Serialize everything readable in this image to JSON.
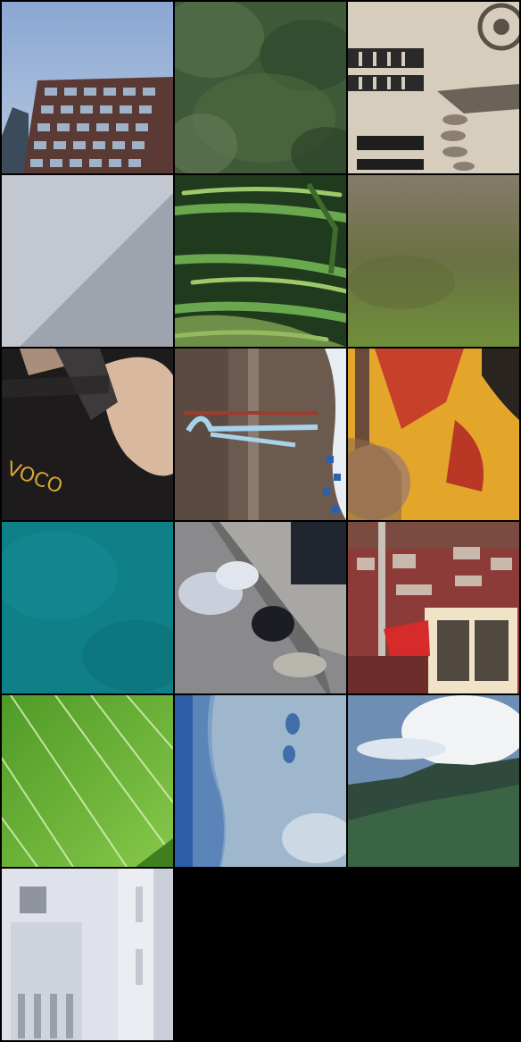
{
  "tiles": [
    {
      "name": "building-windows-sky",
      "text": ""
    },
    {
      "name": "blurred-foliage",
      "text": ""
    },
    {
      "name": "ornate-stone-facade",
      "text": ""
    },
    {
      "name": "grey-wall-corner",
      "text": ""
    },
    {
      "name": "green-wheat-leaves",
      "text": ""
    },
    {
      "name": "blurred-green-brown-background",
      "text": ""
    },
    {
      "name": "bag-and-arm-closeup",
      "text": "VOCO"
    },
    {
      "name": "white-string-on-wood",
      "text": ""
    },
    {
      "name": "orange-fabric-and-bag",
      "text": ""
    },
    {
      "name": "turquoise-water",
      "text": ""
    },
    {
      "name": "debris-on-curb",
      "text": ""
    },
    {
      "name": "red-hillside-houses",
      "text": ""
    },
    {
      "name": "green-leaf-veins",
      "text": ""
    },
    {
      "name": "blue-ice-surface",
      "text": ""
    },
    {
      "name": "mountain-ridge-clouds",
      "text": ""
    },
    {
      "name": "white-building-detail",
      "text": ""
    }
  ]
}
